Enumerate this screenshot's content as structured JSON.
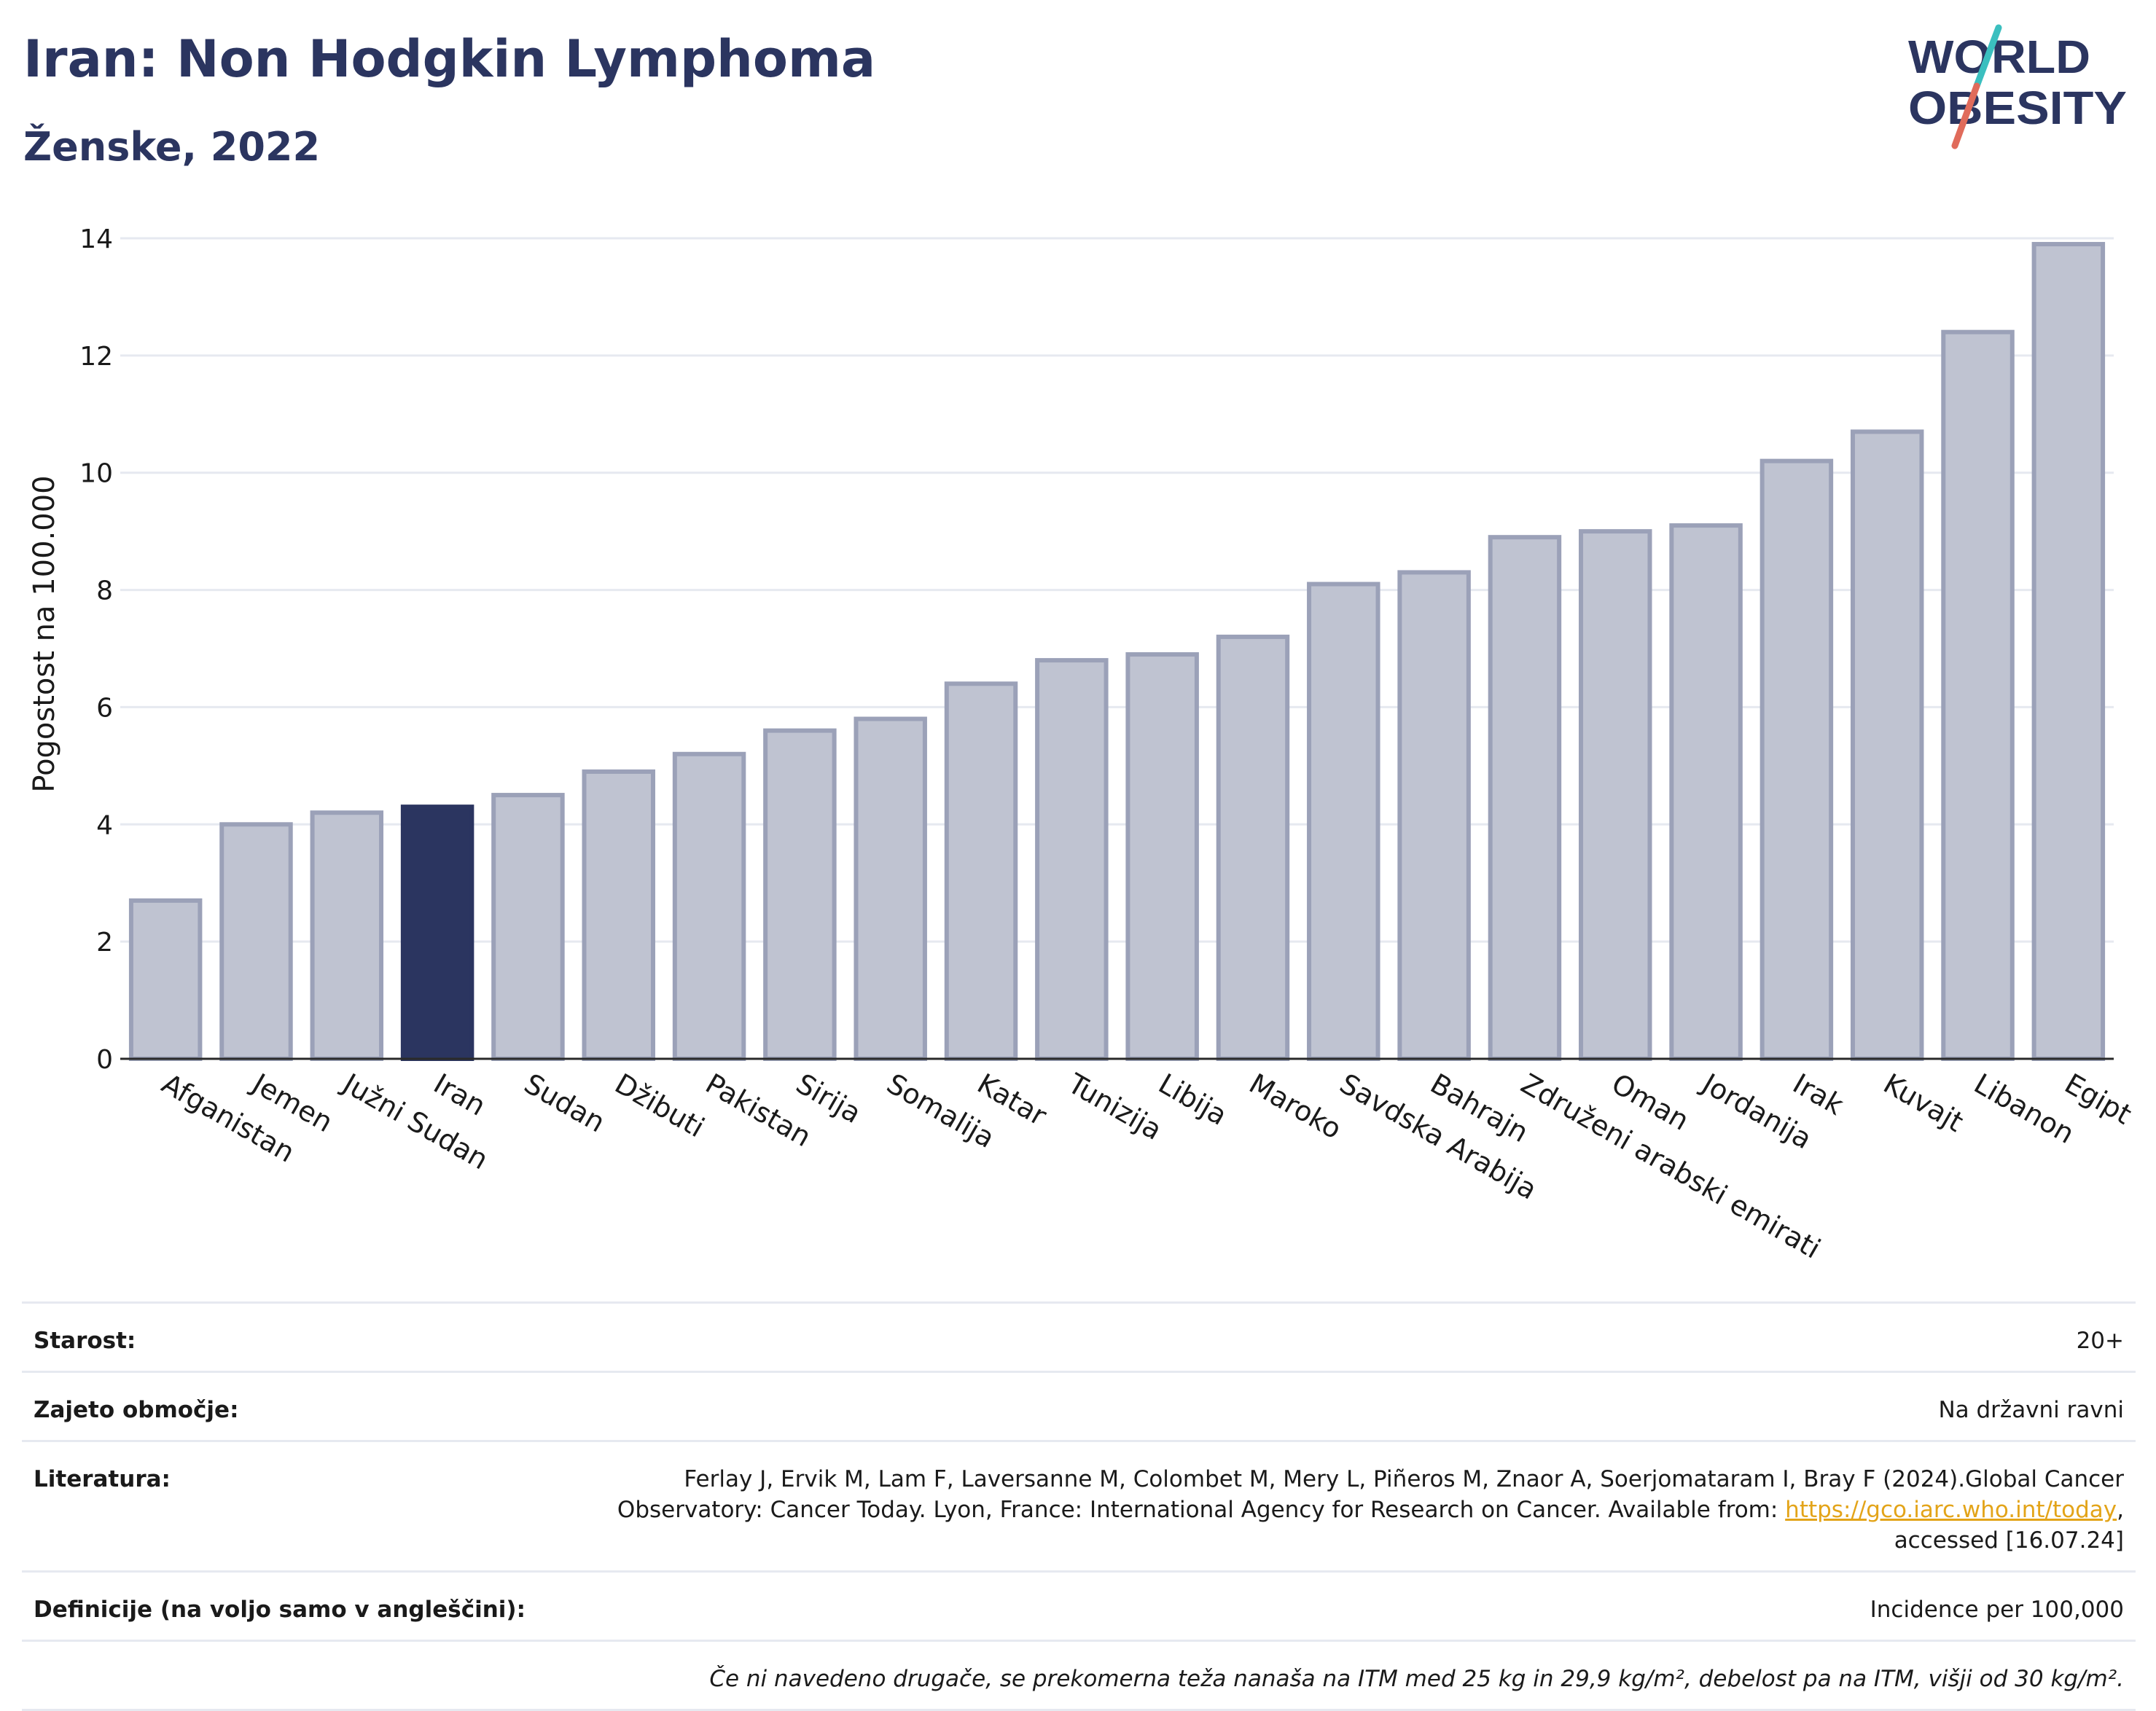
{
  "header": {
    "title": "Iran: Non Hodgkin Lymphoma",
    "subtitle": "Ženske, 2022"
  },
  "logo": {
    "line1": "WORLD",
    "line2": "OBESITY"
  },
  "colors": {
    "highlight": "#2b3560",
    "bar_fill": "#bfc3d1",
    "bar_stroke": "#9ba1b8",
    "grid": "#e6e9f0",
    "logo_teal": "#3bbfbf",
    "logo_coral": "#e06b5b",
    "link": "#e3a419"
  },
  "chart_data": {
    "type": "bar",
    "title": "Iran: Non Hodgkin Lymphoma",
    "subtitle": "Ženske, 2022",
    "ylabel": "Pogostost na 100.000",
    "xlabel": "",
    "ylim": [
      0,
      14
    ],
    "yticks": [
      0,
      2,
      4,
      6,
      8,
      10,
      12,
      14
    ],
    "grid": true,
    "highlighted": "Iran",
    "categories": [
      "Afganistan",
      "Jemen",
      "Južni Sudan",
      "Iran",
      "Sudan",
      "Džibuti",
      "Pakistan",
      "Sirija",
      "Somalija",
      "Katar",
      "Tunizija",
      "Libija",
      "Maroko",
      "Savdska Arabija",
      "Bahrajn",
      "Združeni arabski emirati",
      "Oman",
      "Jordanija",
      "Irak",
      "Kuvajt",
      "Libanon",
      "Egipt"
    ],
    "values": [
      2.7,
      4.0,
      4.2,
      4.3,
      4.5,
      4.9,
      5.2,
      5.6,
      5.8,
      6.4,
      6.8,
      6.9,
      7.2,
      8.1,
      8.3,
      8.9,
      9.0,
      9.1,
      10.2,
      10.7,
      12.4,
      13.9
    ]
  },
  "info": {
    "age_label": "Starost:",
    "age_value": "20+",
    "coverage_label": "Zajeto območje:",
    "coverage_value": "Na državni ravni",
    "ref_label": "Literatura:",
    "ref_text1": "Ferlay J, Ervik M, Lam F, Laversanne M, Colombet M, Mery L, Piñeros M, Znaor A, Soerjomataram I, Bray F (2024).Global Cancer Observatory: Cancer Today. Lyon, France: International Agency for Research on Cancer. Available from: ",
    "ref_link": "https://gco.iarc.who.int/today",
    "ref_text2": ", accessed [16.07.24]",
    "def_label": "Definicije (na voljo samo v angleščini):",
    "def_value": "Incidence per 100,000",
    "note": "Če ni navedeno drugače, se prekomerna teža nanaša na ITM med 25 kg in 29,9 kg/m², debelost pa na ITM, višji od 30 kg/m²."
  }
}
